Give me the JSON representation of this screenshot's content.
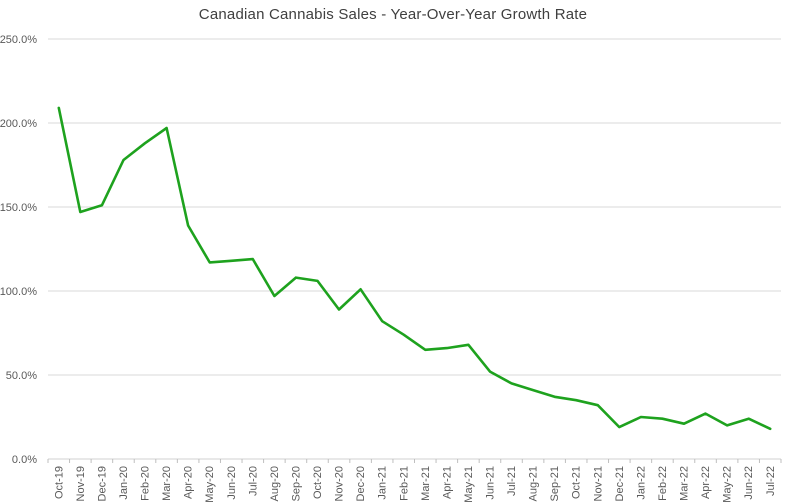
{
  "colors": {
    "line": "#1ea21e",
    "gridline": "#d9d9d9",
    "axis_line": "#d0d0d0",
    "tick_mark": "#bfbfbf",
    "tick_label": "#595959",
    "title": "#3f3f3f",
    "background": "#ffffff"
  },
  "chart_data": {
    "type": "line",
    "title": "Canadian Cannabis Sales - Year-Over-Year Growth Rate",
    "categories": [
      "Oct-19",
      "Nov-19",
      "Dec-19",
      "Jan-20",
      "Feb-20",
      "Mar-20",
      "Apr-20",
      "May-20",
      "Jun-20",
      "Jul-20",
      "Aug-20",
      "Sep-20",
      "Oct-20",
      "Nov-20",
      "Dec-20",
      "Jan-21",
      "Feb-21",
      "Mar-21",
      "Apr-21",
      "May-21",
      "Jun-21",
      "Jul-21",
      "Aug-21",
      "Sep-21",
      "Oct-21",
      "Nov-21",
      "Dec-21",
      "Jan-22",
      "Feb-22",
      "Mar-22",
      "Apr-22",
      "May-22",
      "Jun-22",
      "Jul-22"
    ],
    "values": [
      209,
      147,
      151,
      178,
      188,
      197,
      139,
      117,
      118,
      119,
      97,
      108,
      106,
      89,
      101,
      82,
      74,
      65,
      66,
      68,
      52,
      45,
      41,
      37,
      35,
      32,
      19,
      25,
      24,
      21,
      27,
      20,
      24,
      18
    ],
    "values_unit": "percent",
    "xlabel": "",
    "ylabel": "",
    "ylim": [
      0,
      250
    ],
    "y_ticks": [
      {
        "value": 0,
        "label": "0.0%"
      },
      {
        "value": 50,
        "label": "50.0%"
      },
      {
        "value": 100,
        "label": "100.0%"
      },
      {
        "value": 150,
        "label": "150.0%"
      },
      {
        "value": 200,
        "label": "200.0%"
      },
      {
        "value": 250,
        "label": "250.0%"
      }
    ],
    "grid": true,
    "legend": false,
    "x_tick_rotation": -90
  }
}
